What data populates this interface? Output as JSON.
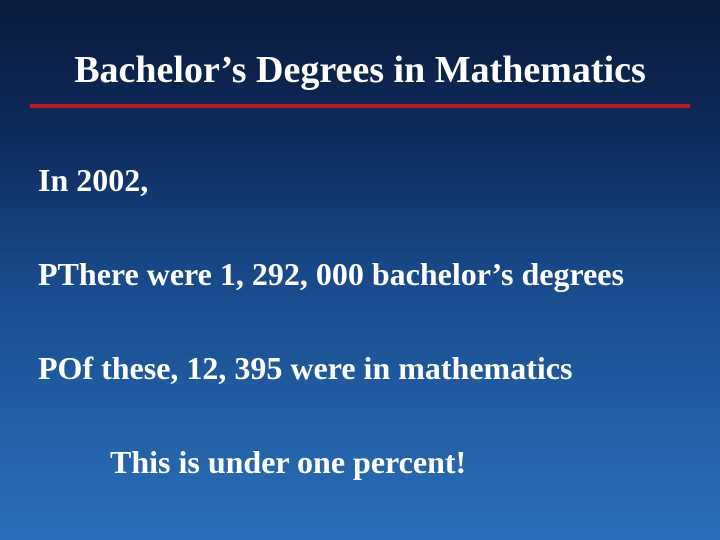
{
  "slide": {
    "title": "Bachelor’s Degrees in Mathematics",
    "line1": "In 2002,",
    "line2": "PThere were 1, 292, 000 bachelor’s degrees",
    "line3": "POf these, 12, 395 were in mathematics",
    "line4": "This is under one percent!",
    "background_gradient": [
      "#0a1a3a",
      "#0e2a5c",
      "#1a4d8f",
      "#2a6fb8"
    ],
    "text_color": "#ffffff",
    "underline_color": "#b02020",
    "font_family": "Times New Roman",
    "title_fontsize": 38,
    "body_fontsize": 32
  }
}
